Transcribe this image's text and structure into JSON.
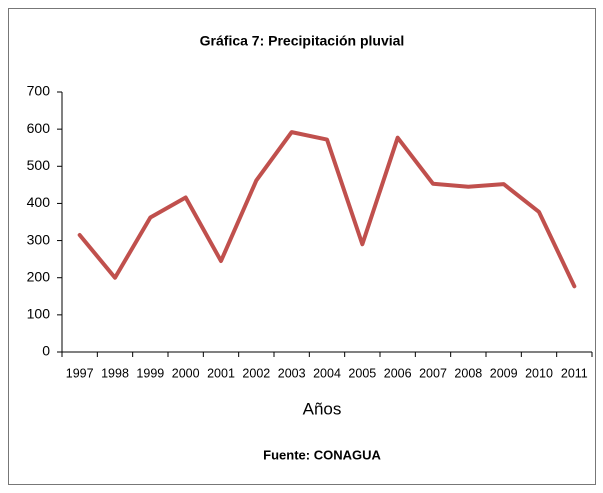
{
  "chart_data": {
    "type": "line",
    "title": "Gráfica 7: Precipitación  pluvial",
    "x_label": "Años",
    "source": "Fuente: CONAGUA",
    "categories": [
      "1997",
      "1998",
      "1999",
      "2000",
      "2001",
      "2002",
      "2003",
      "2004",
      "2005",
      "2006",
      "2007",
      "2008",
      "2009",
      "2010",
      "2011"
    ],
    "series": [
      {
        "name": "Precipitación pluvial",
        "color": "#c0504d",
        "values": [
          315,
          200,
          362,
          416,
          245,
          462,
          592,
          572,
          290,
          577,
          453,
          445,
          452,
          377,
          177
        ]
      }
    ],
    "ylim": [
      0,
      700
    ],
    "yticks": [
      0,
      100,
      200,
      300,
      400,
      500,
      600,
      700
    ],
    "grid": false,
    "legend": false
  }
}
